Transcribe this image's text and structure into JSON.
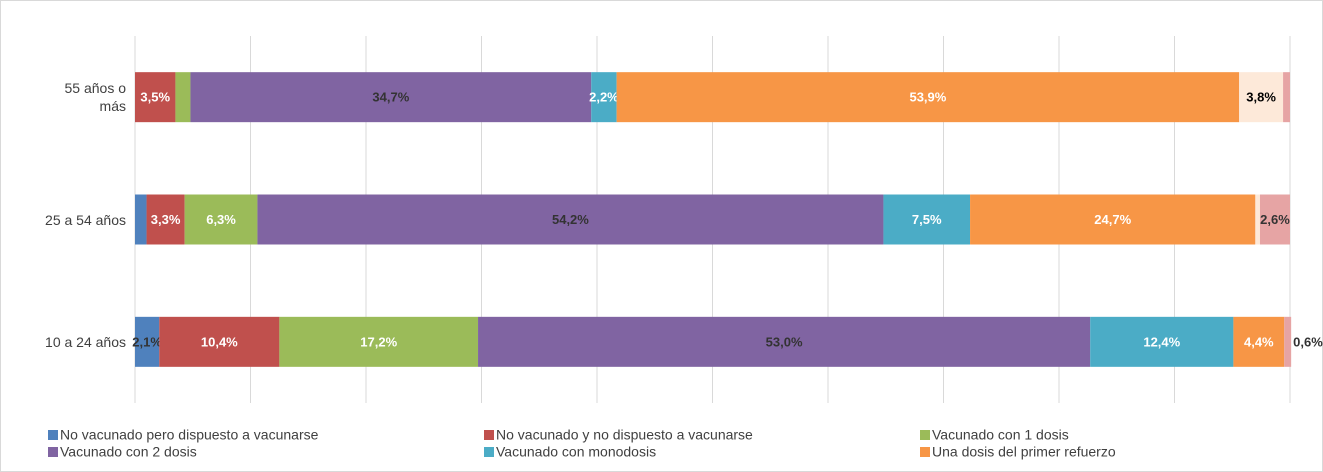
{
  "chart_data": {
    "type": "stacked_barh",
    "categories": [
      "55 años o más",
      "25 a 54 años",
      "10 a 24 años"
    ],
    "xlim": [
      0,
      100
    ],
    "xticks": [
      0,
      10,
      20,
      30,
      40,
      50,
      60,
      70,
      80,
      90,
      100
    ],
    "grid": true,
    "series": [
      {
        "name": "No vacunado pero dispuesto a vacunarse",
        "color": "#4f81bd",
        "values": [
          0,
          1.0,
          2.1
        ],
        "value_labels": [
          null,
          null,
          "2,1%"
        ]
      },
      {
        "name": "No vacunado y no dispuesto a vacunarse",
        "color": "#c0504d",
        "values": [
          3.5,
          3.3,
          10.4
        ],
        "value_labels": [
          "3,5%",
          "3,3%",
          "10,4%"
        ]
      },
      {
        "name": "Vacunado con 1 dosis",
        "color": "#9bbb59",
        "values": [
          1.3,
          6.3,
          17.2
        ],
        "value_labels": [
          "1,3%",
          "6,3%",
          "17,2%"
        ]
      },
      {
        "name": "Vacunado con 2 dosis",
        "color": "#8064a2",
        "values": [
          34.7,
          54.2,
          53.0
        ],
        "value_labels": [
          "34,7%",
          "54,2%",
          "53,0%"
        ]
      },
      {
        "name": "Vacunado con monodosis",
        "color": "#4bacc6",
        "values": [
          2.2,
          7.5,
          12.4
        ],
        "value_labels": [
          "2,2%",
          "7,5%",
          "12,4%"
        ]
      },
      {
        "name": "Una dosis del primer refuerzo",
        "color": "#f79646",
        "values": [
          53.9,
          24.7,
          4.4
        ],
        "value_labels": [
          "53,9%",
          "24,7%",
          "4,4%"
        ]
      },
      {
        "color": "#fde9d9",
        "values": [
          3.8,
          0.4,
          0
        ],
        "value_labels": [
          "3,8%",
          null,
          null
        ]
      },
      {
        "color": "#e6a4a4",
        "values": [
          0.6,
          2.6,
          0.6
        ],
        "value_labels": [
          null,
          "2,6%",
          "0,6%"
        ]
      }
    ]
  }
}
